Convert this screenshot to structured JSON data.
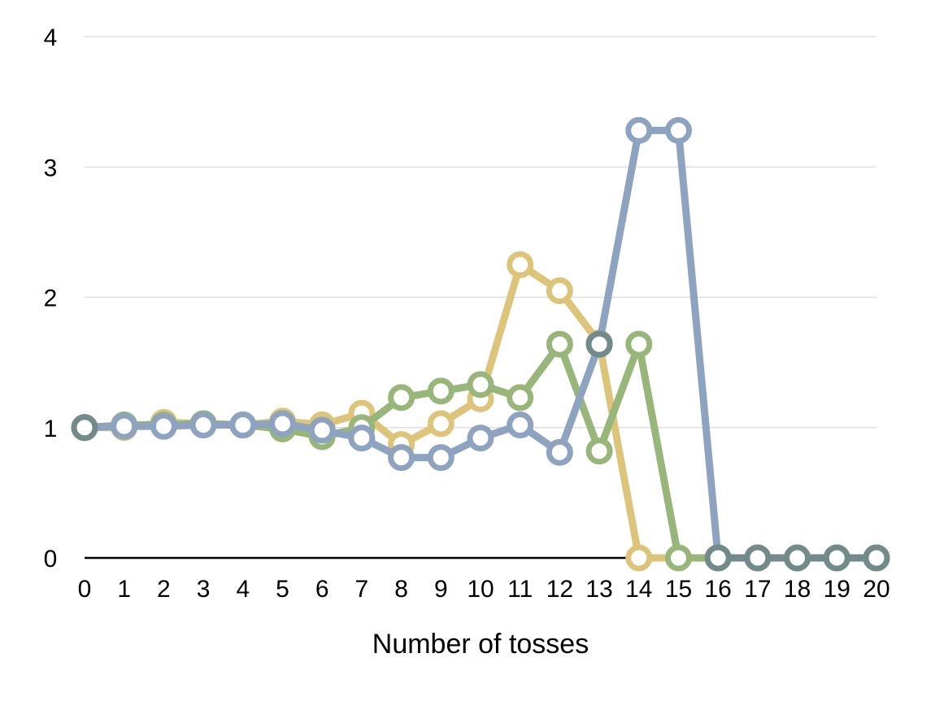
{
  "chart_data": {
    "type": "line",
    "xlabel": "Number of tosses",
    "ylabel": "",
    "title": "",
    "x": [
      0,
      1,
      2,
      3,
      4,
      5,
      6,
      7,
      8,
      9,
      10,
      11,
      12,
      13,
      14,
      15,
      16,
      17,
      18,
      19,
      20
    ],
    "xlim": [
      0,
      20
    ],
    "ylim": [
      0,
      4
    ],
    "yticks": [
      0,
      1,
      2,
      3,
      4
    ],
    "grid": true,
    "legend": "none",
    "series": [
      {
        "color": "#dcc57a",
        "values": [
          1,
          1,
          1.04,
          1.03,
          1.02,
          1.05,
          1.02,
          1.11,
          0.87,
          1.03,
          1.22,
          2.25,
          2.05,
          1.65,
          0,
          0,
          0,
          0,
          0,
          0,
          0
        ]
      },
      {
        "color": "#98b57a",
        "values": [
          1,
          1.02,
          1.02,
          1.03,
          1.02,
          0.99,
          0.93,
          1.0,
          1.23,
          1.28,
          1.33,
          1.23,
          1.64,
          0.82,
          1.64,
          0,
          0,
          0,
          0,
          0,
          0
        ]
      },
      {
        "color": "#8ea3bf",
        "values": [
          1,
          1.01,
          1.01,
          1.02,
          1.02,
          1.03,
          0.98,
          0.92,
          0.77,
          0.77,
          0.92,
          1.02,
          0.81,
          1.64,
          3.28,
          3.28,
          0,
          0,
          0,
          0,
          0
        ]
      },
      {
        "color": "#728a8a",
        "values": [
          1,
          null,
          null,
          null,
          null,
          null,
          null,
          null,
          null,
          null,
          null,
          null,
          null,
          1.64,
          null,
          null,
          0,
          0,
          0,
          0,
          0
        ]
      }
    ]
  }
}
